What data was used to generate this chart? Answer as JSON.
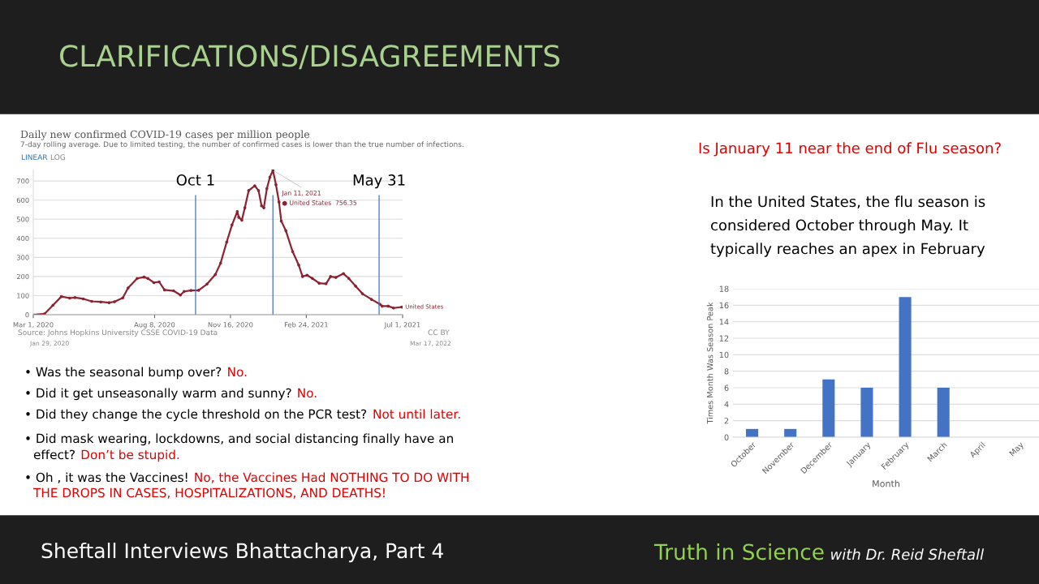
{
  "chart_data": [
    {
      "type": "line",
      "title": "Daily new confirmed COVID-19 cases per million people",
      "subtitle": "7-day rolling average. Due to limited testing, the number of confirmed cases is lower than the true number of infections.",
      "x": [
        "2020-03-01",
        "2020-03-16",
        "2020-03-27",
        "2020-04-07",
        "2020-04-18",
        "2020-04-25",
        "2020-05-06",
        "2020-05-17",
        "2020-05-29",
        "2020-06-09",
        "2020-06-16",
        "2020-06-27",
        "2020-07-04",
        "2020-07-16",
        "2020-07-25",
        "2020-07-30",
        "2020-08-07",
        "2020-08-14",
        "2020-08-21",
        "2020-09-02",
        "2020-09-11",
        "2020-09-16",
        "2020-09-25",
        "2020-10-05",
        "2020-10-16",
        "2020-10-27",
        "2020-11-03",
        "2020-11-11",
        "2020-11-18",
        "2020-11-25",
        "2020-11-27",
        "2020-12-01",
        "2020-12-05",
        "2020-12-10",
        "2020-12-18",
        "2020-12-23",
        "2020-12-27",
        "2020-12-30",
        "2021-01-03",
        "2021-01-07",
        "2021-01-11",
        "2021-01-15",
        "2021-01-19",
        "2021-01-22",
        "2021-01-28",
        "2021-02-06",
        "2021-02-14",
        "2021-02-19",
        "2021-02-25",
        "2021-03-04",
        "2021-03-13",
        "2021-03-22",
        "2021-03-28",
        "2021-04-04",
        "2021-04-14",
        "2021-04-21",
        "2021-04-30",
        "2021-05-09",
        "2021-05-21",
        "2021-06-01",
        "2021-06-04",
        "2021-06-12",
        "2021-06-19",
        "2021-06-30"
      ],
      "series": [
        {
          "name": "United States",
          "color": "#8b2332",
          "values": [
            0,
            5,
            50,
            95,
            87,
            90,
            83,
            70,
            67,
            63,
            68,
            88,
            140,
            190,
            197,
            190,
            168,
            172,
            130,
            125,
            103,
            122,
            127,
            128,
            160,
            210,
            270,
            380,
            470,
            540,
            510,
            495,
            560,
            650,
            675,
            650,
            570,
            560,
            660,
            720,
            756.35,
            680,
            590,
            490,
            440,
            330,
            260,
            200,
            207,
            190,
            165,
            162,
            200,
            195,
            215,
            190,
            150,
            110,
            80,
            55,
            45,
            45,
            35,
            40
          ]
        }
      ],
      "xlim": [
        "2020-03-01",
        "2021-07-01"
      ],
      "xticks": [
        {
          "value": "2020-03-01",
          "label": "Mar 1, 2020"
        },
        {
          "value": "2020-08-08",
          "label": "Aug 8, 2020"
        },
        {
          "value": "2020-11-16",
          "label": "Nov 16, 2020"
        },
        {
          "value": "2021-02-24",
          "label": "Feb 24, 2021"
        },
        {
          "value": "2021-07-01",
          "label": "Jul 1, 2021"
        }
      ],
      "ylim": [
        0,
        760
      ],
      "yticks": [
        0,
        100,
        200,
        300,
        400,
        500,
        600,
        700
      ],
      "grid": "y",
      "legend": false,
      "marker": "circle",
      "line_style": "solid",
      "ref_lines": [
        {
          "axis": "x",
          "value": "2020-10-01",
          "label": "Oct 1",
          "color": "#4472c4"
        },
        {
          "axis": "x",
          "value": "2021-01-11",
          "label": null,
          "color": "#4472c4"
        },
        {
          "axis": "x",
          "value": "2021-05-31",
          "label": "May 31",
          "color": "#4472c4"
        }
      ],
      "annotations": [
        "CLARIFICATIONS/DISAGREEMENTS",
        "LINEAR",
        "LOG",
        {
          "text": "Jan 11, 2021\n● United States  756.35",
          "x": "2021-01-11",
          "y": 756.35
        },
        "Source: Johns Hopkins University CSSE COVID-19 Data",
        "CC BY",
        "Jan 29, 2020",
        "Mar 17, 2022",
        "• Was the seasonal bump over?",
        "No.",
        "• Did it get unseasonally warm and sunny?",
        "No.",
        "• Did they change the cycle threshold on the PCR test?",
        "Not until later.",
        "• Did mask wearing, lockdowns, and social distancing finally have an",
        "effect?",
        "Don’t be stupid.",
        "• Oh , it was the Vaccines!",
        "No, the Vaccines Had NOTHING TO DO WITH",
        "THE DROPS IN CASES, HOSPITALIZATIONS, AND DEATHS!",
        "Sheftall Interviews Bhattacharya, Part 4"
      ]
    },
    {
      "type": "bar",
      "categories": [
        "October",
        "November",
        "December",
        "January",
        "February",
        "March",
        "April",
        "May"
      ],
      "values": [
        1,
        1,
        7,
        6,
        17,
        6,
        0,
        0
      ],
      "color": "#4472c4",
      "xlabel": "Month",
      "ylabel": "Times Month Was Season Peak",
      "ylim": [
        0,
        18
      ],
      "yticks": [
        0,
        2,
        4,
        6,
        8,
        10,
        12,
        14,
        16,
        18
      ],
      "grid": "y",
      "legend": false,
      "annotations": [
        "Is January 11 near the end of Flu season?",
        "In the United States, the flu season is",
        "considered October through May. It",
        "typically reaches an apex in February",
        "Truth in Science",
        "with Dr. Reid Sheftall"
      ]
    }
  ]
}
